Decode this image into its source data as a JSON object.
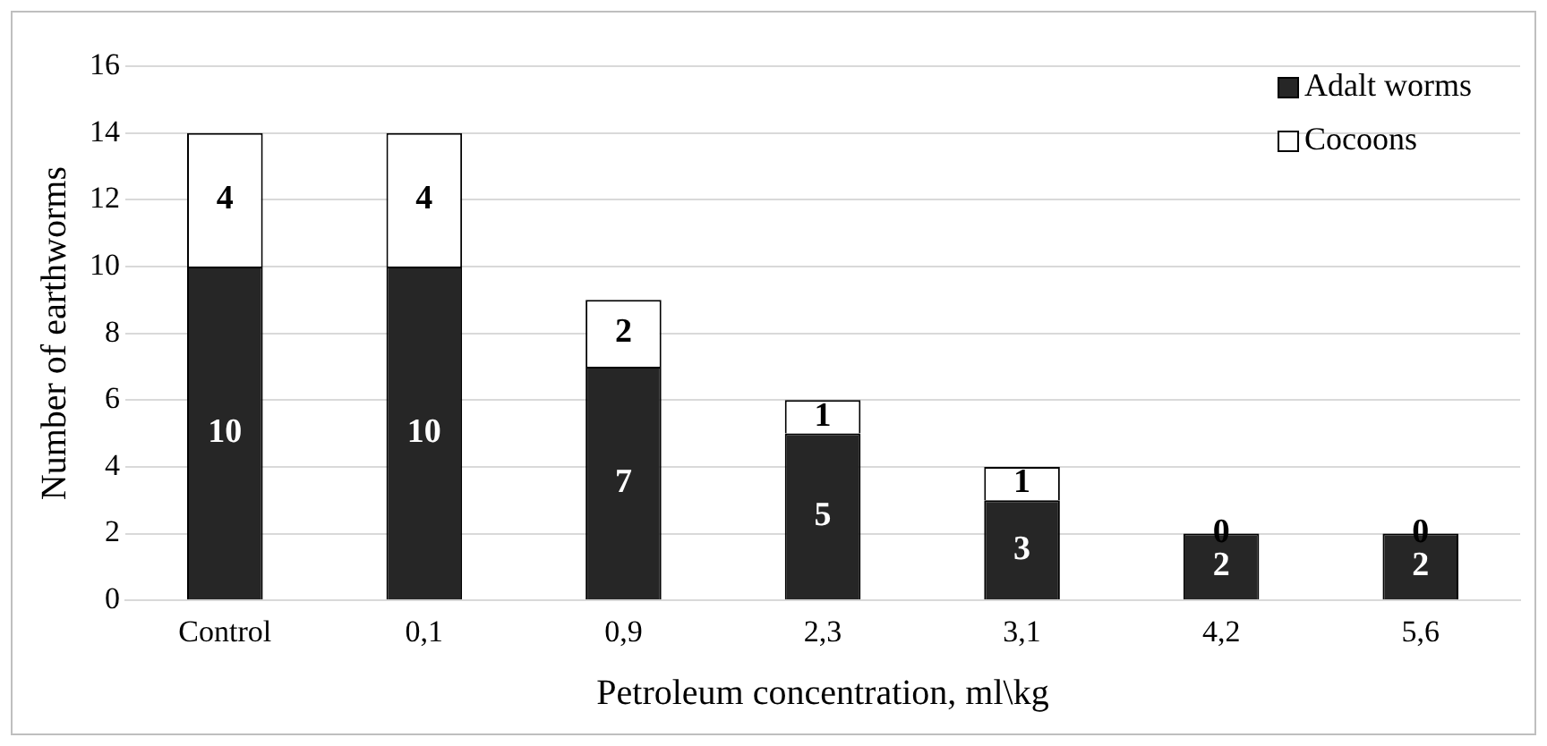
{
  "chart_data": {
    "type": "bar",
    "stacked": true,
    "xlabel": "Petroleum concentration, ml\\kg",
    "ylabel": "Number of earthworms",
    "categories": [
      "Control",
      "0,1",
      "0,9",
      "2,3",
      "3,1",
      "4,2",
      "5,6"
    ],
    "series": [
      {
        "name": "Adalt worms",
        "color": "#262626",
        "values": [
          10,
          10,
          7,
          5,
          3,
          2,
          2
        ]
      },
      {
        "name": "Cocoons",
        "color": "#ffffff",
        "values": [
          4,
          4,
          2,
          1,
          1,
          0,
          0
        ]
      }
    ],
    "ylim": [
      0,
      16
    ],
    "yticks": [
      0,
      2,
      4,
      6,
      8,
      10,
      12,
      14,
      16
    ],
    "grid": "y",
    "legend": "top right",
    "data_labels": true
  }
}
